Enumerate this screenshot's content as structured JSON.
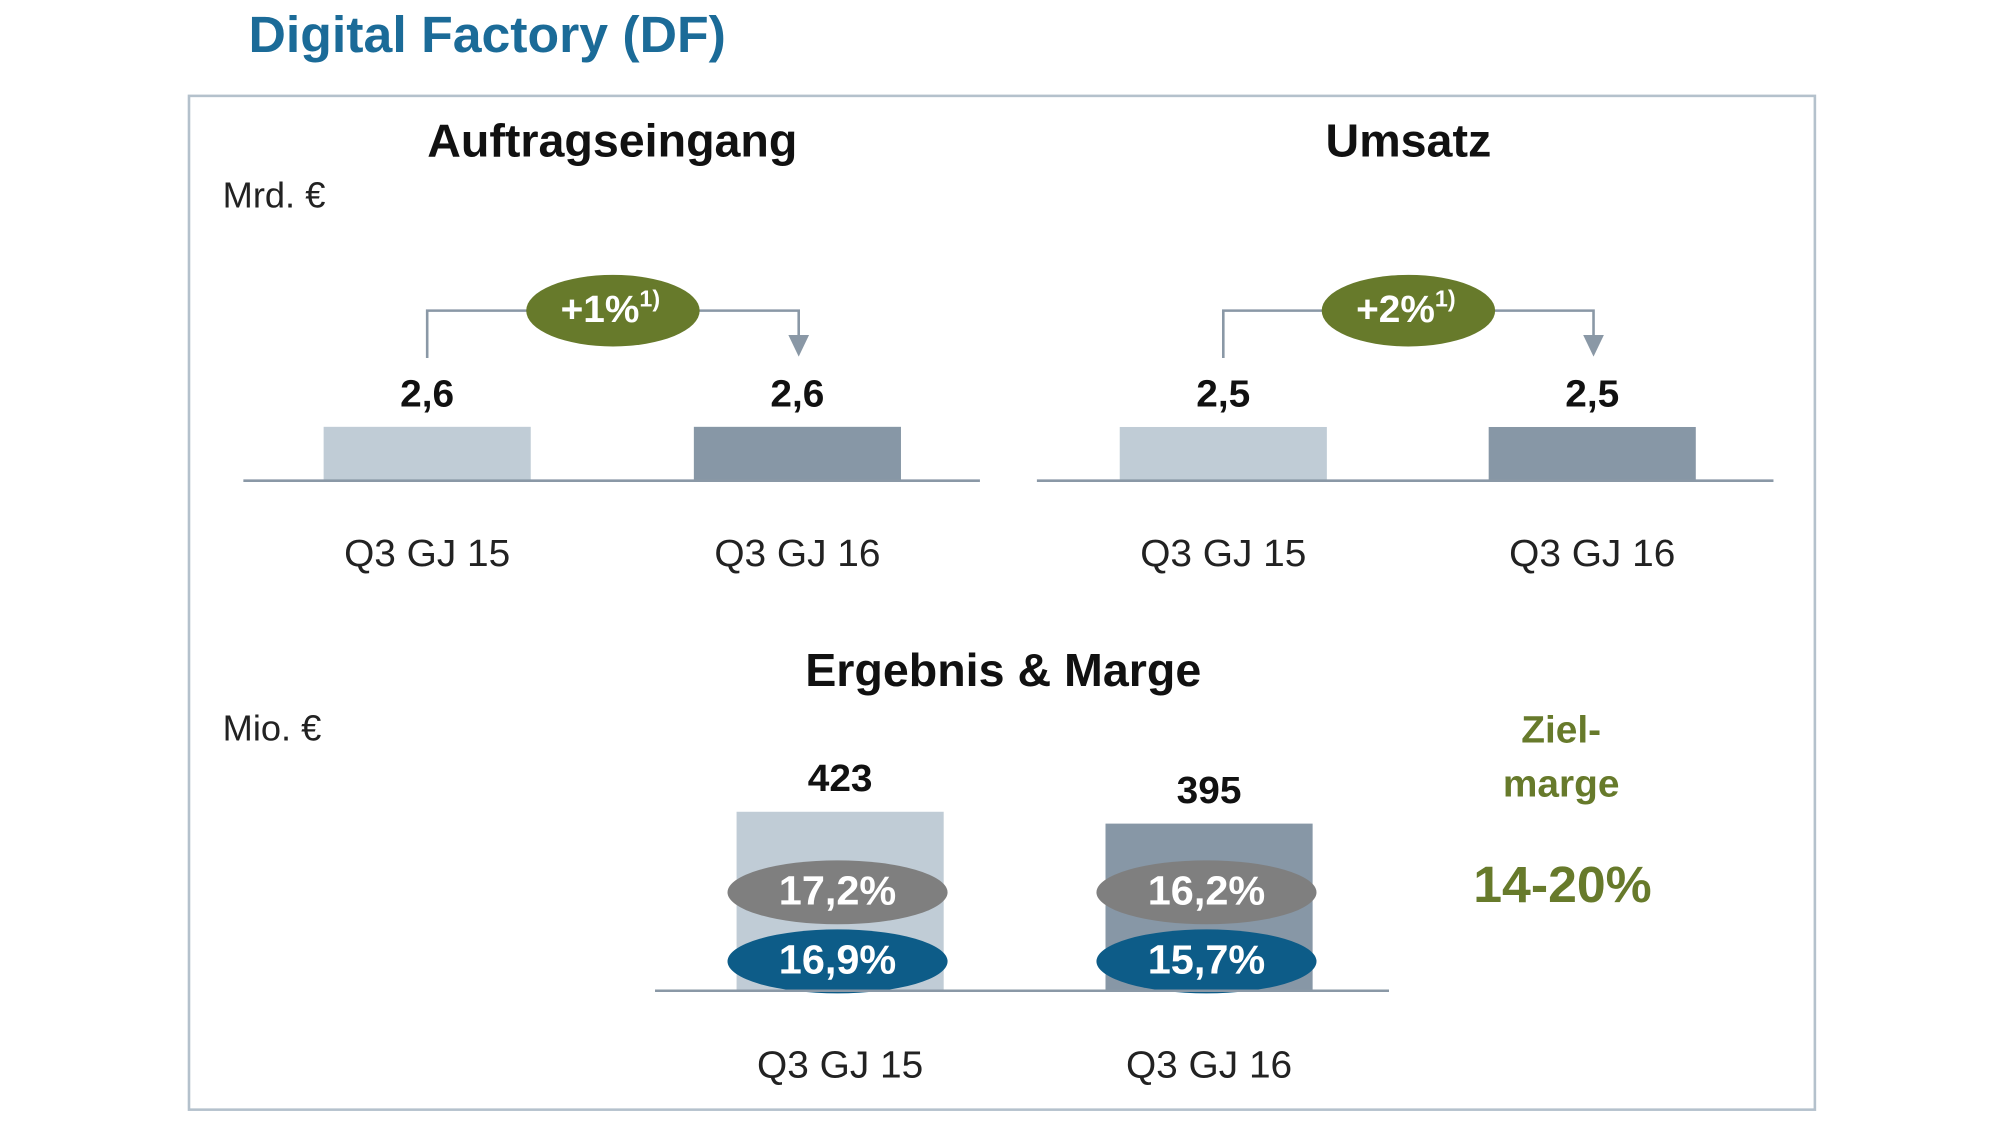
{
  "title": "Digital Factory (DF)",
  "chart_data": [
    {
      "type": "bar",
      "title": "Auftragseingang",
      "unit": "Mrd. €",
      "categories": [
        "Q3 GJ 15",
        "Q3 GJ 16"
      ],
      "values": [
        2.6,
        2.6
      ],
      "value_labels": [
        "2,6",
        "2,6"
      ],
      "colors": [
        "#c0ccd6",
        "#8797a6"
      ],
      "change": "+1%",
      "change_note": "1)",
      "change_color": "#677a2b"
    },
    {
      "type": "bar",
      "title": "Umsatz",
      "categories": [
        "Q3 GJ 15",
        "Q3 GJ 16"
      ],
      "values": [
        2.5,
        2.5
      ],
      "value_labels": [
        "2,5",
        "2,5"
      ],
      "colors": [
        "#c0ccd6",
        "#8797a6"
      ],
      "change": "+2%",
      "change_note": "1)",
      "change_color": "#677a2b"
    },
    {
      "type": "bar",
      "title": "Ergebnis & Marge",
      "unit": "Mio. €",
      "categories": [
        "Q3 GJ 15",
        "Q3 GJ 16"
      ],
      "values": [
        423,
        395
      ],
      "value_labels": [
        "423",
        "395"
      ],
      "colors": [
        "#c0ccd6",
        "#8797a6"
      ],
      "margins": [
        {
          "color": "#7f7f7f",
          "values": [
            17.2,
            16.2
          ],
          "value_labels": [
            "17,2%",
            "16,2%"
          ]
        },
        {
          "color": "#0d5c88",
          "values": [
            16.9,
            15.7
          ],
          "value_labels": [
            "16,9%",
            "15,7%"
          ]
        }
      ]
    }
  ],
  "target": {
    "label": [
      "Ziel-",
      "marge"
    ],
    "range": "14-20%",
    "color": "#677a2b"
  }
}
